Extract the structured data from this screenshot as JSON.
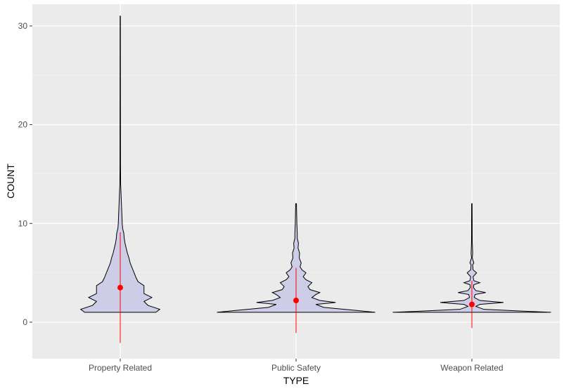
{
  "chart_data": {
    "type": "violin",
    "xlabel": "TYPE",
    "ylabel": "COUNT",
    "categories": [
      "Property Related",
      "Public Safety",
      "Weapon Related"
    ],
    "ylim": [
      -3.7,
      32.2
    ],
    "yticks": [
      0,
      10,
      20,
      30
    ],
    "grid": true,
    "series": [
      {
        "category": "Property Related",
        "min": 1,
        "max": 31,
        "mean": 3.5,
        "error_low": -2.1,
        "error_high": 9.1,
        "density": [
          [
            1,
            0.09
          ],
          [
            1.3,
            0.1
          ],
          [
            1.7,
            0.07
          ],
          [
            2.1,
            0.06
          ],
          [
            2.5,
            0.08
          ],
          [
            2.9,
            0.06
          ],
          [
            3.3,
            0.06
          ],
          [
            3.7,
            0.06
          ],
          [
            4.1,
            0.045
          ],
          [
            4.5,
            0.04
          ],
          [
            5,
            0.035
          ],
          [
            5.5,
            0.03
          ],
          [
            6,
            0.025
          ],
          [
            6.5,
            0.022
          ],
          [
            7,
            0.018
          ],
          [
            7.5,
            0.015
          ],
          [
            8,
            0.012
          ],
          [
            8.5,
            0.01
          ],
          [
            9,
            0.009
          ],
          [
            9.5,
            0.006
          ],
          [
            10,
            0.005
          ],
          [
            11,
            0.004
          ],
          [
            12,
            0.003
          ],
          [
            13,
            0.002
          ],
          [
            14,
            0.001
          ],
          [
            16,
            0.0007
          ],
          [
            20,
            0.0006
          ],
          [
            25,
            0.0005
          ],
          [
            31,
            0.0004
          ]
        ]
      },
      {
        "category": "Public Safety",
        "min": 1,
        "max": 12,
        "mean": 2.2,
        "error_low": -1.1,
        "error_high": 5.5,
        "density": [
          [
            1,
            0.2
          ],
          [
            1.2,
            0.15
          ],
          [
            1.5,
            0.07
          ],
          [
            1.8,
            0.05
          ],
          [
            2,
            0.1
          ],
          [
            2.2,
            0.06
          ],
          [
            2.5,
            0.04
          ],
          [
            2.8,
            0.05
          ],
          [
            3,
            0.06
          ],
          [
            3.3,
            0.035
          ],
          [
            3.6,
            0.03
          ],
          [
            4,
            0.04
          ],
          [
            4.3,
            0.025
          ],
          [
            4.6,
            0.018
          ],
          [
            5,
            0.025
          ],
          [
            5.3,
            0.015
          ],
          [
            5.6,
            0.01
          ],
          [
            6,
            0.013
          ],
          [
            6.5,
            0.008
          ],
          [
            7,
            0.009
          ],
          [
            7.5,
            0.005
          ],
          [
            8,
            0.006
          ],
          [
            8.5,
            0.003
          ],
          [
            9,
            0.003
          ],
          [
            10,
            0.002
          ],
          [
            11,
            0.0015
          ],
          [
            12,
            0.001
          ]
        ]
      },
      {
        "category": "Weapon Related",
        "min": 1,
        "max": 12,
        "mean": 1.8,
        "error_low": -0.6,
        "error_high": 4.2,
        "density": [
          [
            1,
            0.2
          ],
          [
            1.1,
            0.14
          ],
          [
            1.3,
            0.03
          ],
          [
            1.6,
            0.01
          ],
          [
            1.8,
            0.02
          ],
          [
            2,
            0.08
          ],
          [
            2.2,
            0.02
          ],
          [
            2.5,
            0.006
          ],
          [
            2.8,
            0.008
          ],
          [
            3,
            0.035
          ],
          [
            3.2,
            0.01
          ],
          [
            3.5,
            0.004
          ],
          [
            3.8,
            0.005
          ],
          [
            4,
            0.02
          ],
          [
            4.2,
            0.005
          ],
          [
            4.6,
            0.003
          ],
          [
            5,
            0.012
          ],
          [
            5.3,
            0.003
          ],
          [
            5.8,
            0.002
          ],
          [
            6,
            0.005
          ],
          [
            6.5,
            0.001
          ],
          [
            7,
            0.002
          ],
          [
            8,
            0.001
          ],
          [
            9,
            0.0008
          ],
          [
            10,
            0.0008
          ],
          [
            11,
            0.0007
          ],
          [
            12,
            0.0006
          ]
        ]
      }
    ]
  }
}
